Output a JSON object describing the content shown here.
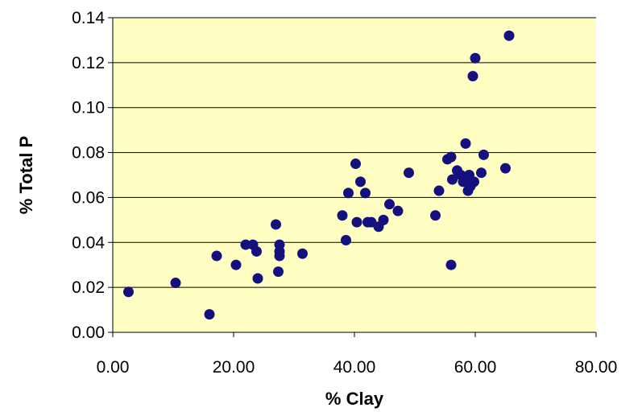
{
  "chart_data": {
    "type": "scatter",
    "title": "",
    "xlabel": "% Clay",
    "ylabel": "% Total P",
    "xlim": [
      0,
      80
    ],
    "ylim": [
      0,
      0.14
    ],
    "x_ticks": [
      "0.00",
      "20.00",
      "40.00",
      "60.00",
      "80.00"
    ],
    "y_ticks": [
      "0.00",
      "0.02",
      "0.04",
      "0.06",
      "0.08",
      "0.10",
      "0.12",
      "0.14"
    ],
    "grid": "horizontal",
    "legend": "none",
    "colors": {
      "plot_background": "#FFFFC4",
      "marker": "#14107E",
      "gridline": "#000000"
    },
    "series": [
      {
        "points": [
          [
            2.6,
            0.018
          ],
          [
            10.4,
            0.022
          ],
          [
            16.0,
            0.008
          ],
          [
            17.2,
            0.034
          ],
          [
            20.4,
            0.03
          ],
          [
            22.0,
            0.039
          ],
          [
            23.2,
            0.039
          ],
          [
            23.8,
            0.036
          ],
          [
            24.0,
            0.024
          ],
          [
            27.0,
            0.048
          ],
          [
            27.4,
            0.027
          ],
          [
            27.6,
            0.034
          ],
          [
            27.6,
            0.036
          ],
          [
            27.6,
            0.039
          ],
          [
            31.4,
            0.035
          ],
          [
            38.0,
            0.052
          ],
          [
            38.6,
            0.041
          ],
          [
            39.0,
            0.062
          ],
          [
            40.2,
            0.075
          ],
          [
            40.4,
            0.049
          ],
          [
            41.0,
            0.067
          ],
          [
            41.8,
            0.062
          ],
          [
            42.2,
            0.049
          ],
          [
            42.8,
            0.049
          ],
          [
            44.0,
            0.047
          ],
          [
            44.8,
            0.05
          ],
          [
            45.8,
            0.057
          ],
          [
            47.2,
            0.054
          ],
          [
            49.0,
            0.071
          ],
          [
            53.4,
            0.052
          ],
          [
            54.0,
            0.063
          ],
          [
            55.4,
            0.077
          ],
          [
            56.0,
            0.078
          ],
          [
            56.0,
            0.03
          ],
          [
            56.2,
            0.068
          ],
          [
            57.0,
            0.072
          ],
          [
            57.6,
            0.07
          ],
          [
            58.0,
            0.067
          ],
          [
            58.2,
            0.068
          ],
          [
            58.4,
            0.084
          ],
          [
            58.8,
            0.063
          ],
          [
            59.0,
            0.07
          ],
          [
            59.2,
            0.065
          ],
          [
            59.6,
            0.114
          ],
          [
            59.8,
            0.067
          ],
          [
            60.0,
            0.122
          ],
          [
            61.0,
            0.071
          ],
          [
            61.4,
            0.079
          ],
          [
            65.0,
            0.073
          ],
          [
            65.6,
            0.132
          ]
        ]
      }
    ]
  }
}
